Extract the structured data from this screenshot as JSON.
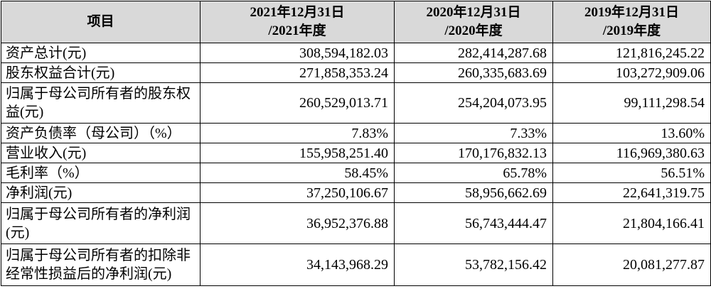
{
  "table": {
    "headers": [
      {
        "line1": "项目",
        "line2": ""
      },
      {
        "line1": "2021年12月31日",
        "line2": "/2021年度"
      },
      {
        "line1": "2020年12月31日",
        "line2": "/2020年度"
      },
      {
        "line1": "2019年12月31日",
        "line2": "/2019年度"
      }
    ],
    "rows": [
      {
        "label": "资产总计(元)",
        "values": [
          "308,594,182.03",
          "282,414,287.68",
          "121,816,245.22"
        ]
      },
      {
        "label": "股东权益合计(元)",
        "values": [
          "271,858,353.24",
          "260,335,683.69",
          "103,272,909.06"
        ]
      },
      {
        "label": "归属于母公司所有者的股东权益(元)",
        "values": [
          "260,529,013.71",
          "254,204,073.95",
          "99,111,298.54"
        ]
      },
      {
        "label": "资产负债率（母公司）（%）",
        "values": [
          "7.83%",
          "7.33%",
          "13.60%"
        ]
      },
      {
        "label": "营业收入(元)",
        "values": [
          "155,958,251.40",
          "170,176,832.13",
          "116,969,380.63"
        ]
      },
      {
        "label": "毛利率（%）",
        "values": [
          "58.45%",
          "65.78%",
          "56.51%"
        ]
      },
      {
        "label": "净利润(元)",
        "values": [
          "37,250,106.67",
          "58,956,662.69",
          "22,641,319.75"
        ]
      },
      {
        "label": "归属于母公司所有者的净利润(元)",
        "values": [
          "36,952,376.88",
          "56,743,444.47",
          "21,804,166.41"
        ]
      },
      {
        "label": "归属于母公司所有者的扣除非经常性损益后的净利润(元)",
        "values": [
          "34,143,968.29",
          "53,782,156.42",
          "20,081,277.87"
        ]
      }
    ]
  }
}
